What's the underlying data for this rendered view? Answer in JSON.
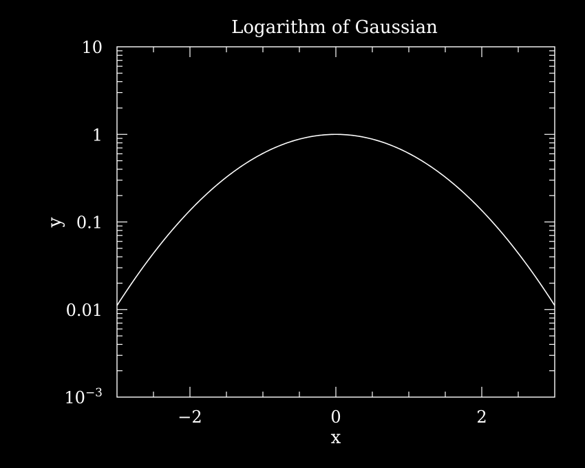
{
  "chart_data": {
    "type": "line",
    "title": "Logarithm of Gaussian",
    "xlabel": "x",
    "ylabel": "y",
    "xlim": [
      -3,
      3
    ],
    "ylim": [
      0.001,
      10
    ],
    "y_scale": "log",
    "x_ticks": [
      {
        "value": -2,
        "label": "−2"
      },
      {
        "value": 0,
        "label": "0"
      },
      {
        "value": 2,
        "label": "2"
      }
    ],
    "y_ticks": [
      {
        "value": 10,
        "label": "10"
      },
      {
        "value": 1,
        "label": "1"
      },
      {
        "value": 0.1,
        "label": "0.1"
      },
      {
        "value": 0.01,
        "label": "0.01"
      },
      {
        "value": 0.001,
        "label_base": "10",
        "label_exp": "−3"
      }
    ],
    "series": [
      {
        "function": "exp(-x^2/2)",
        "x": [
          -3.0,
          -2.75,
          -2.5,
          -2.25,
          -2.0,
          -1.75,
          -1.5,
          -1.25,
          -1.0,
          -0.75,
          -0.5,
          -0.25,
          0.0,
          0.25,
          0.5,
          0.75,
          1.0,
          1.25,
          1.5,
          1.75,
          2.0,
          2.25,
          2.5,
          2.75,
          3.0
        ],
        "y": [
          0.0111,
          0.0228,
          0.0439,
          0.0796,
          0.1353,
          0.2163,
          0.3247,
          0.4578,
          0.6065,
          0.7548,
          0.8825,
          0.9692,
          1.0,
          0.9692,
          0.8825,
          0.7548,
          0.6065,
          0.4578,
          0.3247,
          0.2163,
          0.1353,
          0.0796,
          0.0439,
          0.0228,
          0.0111
        ]
      }
    ],
    "grid": false,
    "colors": {
      "background": "#000000",
      "foreground": "#ffffff"
    }
  }
}
